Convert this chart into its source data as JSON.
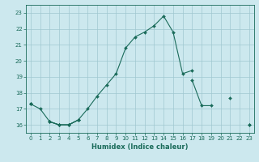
{
  "title": "",
  "xlabel": "Humidex (Indice chaleur)",
  "bg_color": "#cce8ee",
  "grid_color": "#a0c8d0",
  "line_color": "#1a6b5a",
  "xlim": [
    -0.5,
    23.5
  ],
  "ylim": [
    15.5,
    23.5
  ],
  "yticks": [
    16,
    17,
    18,
    19,
    20,
    21,
    22,
    23
  ],
  "xticks": [
    0,
    1,
    2,
    3,
    4,
    5,
    6,
    7,
    8,
    9,
    10,
    11,
    12,
    13,
    14,
    15,
    16,
    17,
    18,
    19,
    20,
    21,
    22,
    23
  ],
  "y1": [
    17.3,
    17.0,
    16.2,
    16.0,
    16.0,
    16.3,
    17.0,
    17.8,
    18.5,
    19.2,
    20.8,
    21.5,
    21.8,
    22.2,
    22.8,
    21.8,
    19.2,
    19.4,
    null,
    null,
    null,
    null,
    null,
    null
  ],
  "y2": [
    17.3,
    null,
    16.2,
    16.0,
    16.0,
    16.3,
    null,
    null,
    null,
    null,
    null,
    null,
    null,
    null,
    null,
    null,
    null,
    18.8,
    17.2,
    17.2,
    null,
    17.7,
    null,
    16.0
  ],
  "y3": [
    17.3,
    null,
    16.2,
    16.0,
    16.0,
    16.3,
    null,
    null,
    null,
    null,
    null,
    null,
    null,
    null,
    null,
    null,
    null,
    null,
    null,
    null,
    null,
    null,
    null,
    16.0
  ],
  "tick_fontsize": 5,
  "xlabel_fontsize": 6,
  "marker_size": 2.0,
  "line_width": 0.8
}
